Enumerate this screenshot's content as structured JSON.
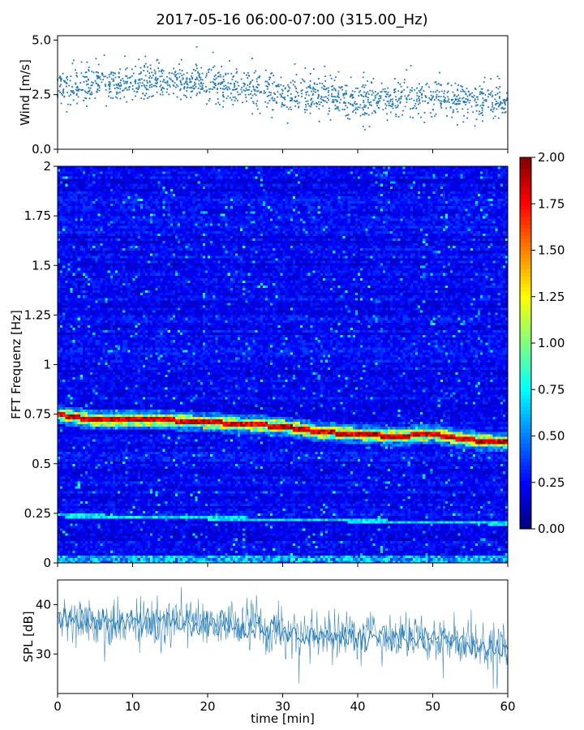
{
  "title": "2017-05-16 06:00-07:00 (315.00_Hz)",
  "chart_data": [
    {
      "type": "scatter",
      "ylabel": "Wind [m/s]",
      "xlim": [
        0,
        60
      ],
      "ylim": [
        0,
        5.2
      ],
      "yticks": [
        "0.0",
        "2.5",
        "5.0"
      ],
      "trend": {
        "x": [
          0,
          5,
          10,
          15,
          20,
          25,
          30,
          35,
          40,
          45,
          50,
          55,
          60
        ],
        "y": [
          2.8,
          3.1,
          3.0,
          3.1,
          3.0,
          2.8,
          2.5,
          2.5,
          2.2,
          2.3,
          2.4,
          2.3,
          2.2
        ]
      },
      "color": "#1f77b4"
    },
    {
      "type": "heatmap",
      "ylabel": "FFT Frequenz [Hz]",
      "xlim": [
        0,
        60
      ],
      "ylim": [
        0,
        2
      ],
      "yticks": [
        "0",
        "0.25",
        "0.5",
        "0.75",
        "1",
        "1.25",
        "1.5",
        "1.75",
        "2"
      ],
      "colorbar": {
        "min": 0,
        "max": 2,
        "ticks": [
          "0.00",
          "0.25",
          "0.50",
          "0.75",
          "1.00",
          "1.25",
          "1.50",
          "1.75",
          "2.00"
        ],
        "colormap": "jet"
      },
      "peak_line": {
        "x": [
          0,
          5,
          10,
          15,
          20,
          25,
          30,
          35,
          40,
          45,
          50,
          55,
          60
        ],
        "freq": [
          0.75,
          0.72,
          0.72,
          0.72,
          0.71,
          0.7,
          0.69,
          0.66,
          0.65,
          0.64,
          0.65,
          0.62,
          0.61
        ]
      },
      "secondary_line": {
        "x": [
          0,
          60
        ],
        "freq": [
          0.24,
          0.2
        ]
      }
    },
    {
      "type": "line",
      "ylabel": "SPL [dB]",
      "xlabel": "time [min]",
      "xlim": [
        0,
        60
      ],
      "ylim": [
        22,
        45
      ],
      "yticks": [
        "30",
        "40"
      ],
      "xticks": [
        "0",
        "10",
        "20",
        "30",
        "40",
        "50",
        "60"
      ],
      "trend": {
        "x": [
          0,
          5,
          10,
          15,
          20,
          25,
          30,
          35,
          40,
          45,
          50,
          55,
          60
        ],
        "y": [
          37,
          37,
          36.5,
          36.5,
          36.5,
          35.5,
          34.5,
          33.5,
          33,
          33.5,
          33,
          31.5,
          31
        ]
      },
      "color": "#1f77b4"
    }
  ]
}
